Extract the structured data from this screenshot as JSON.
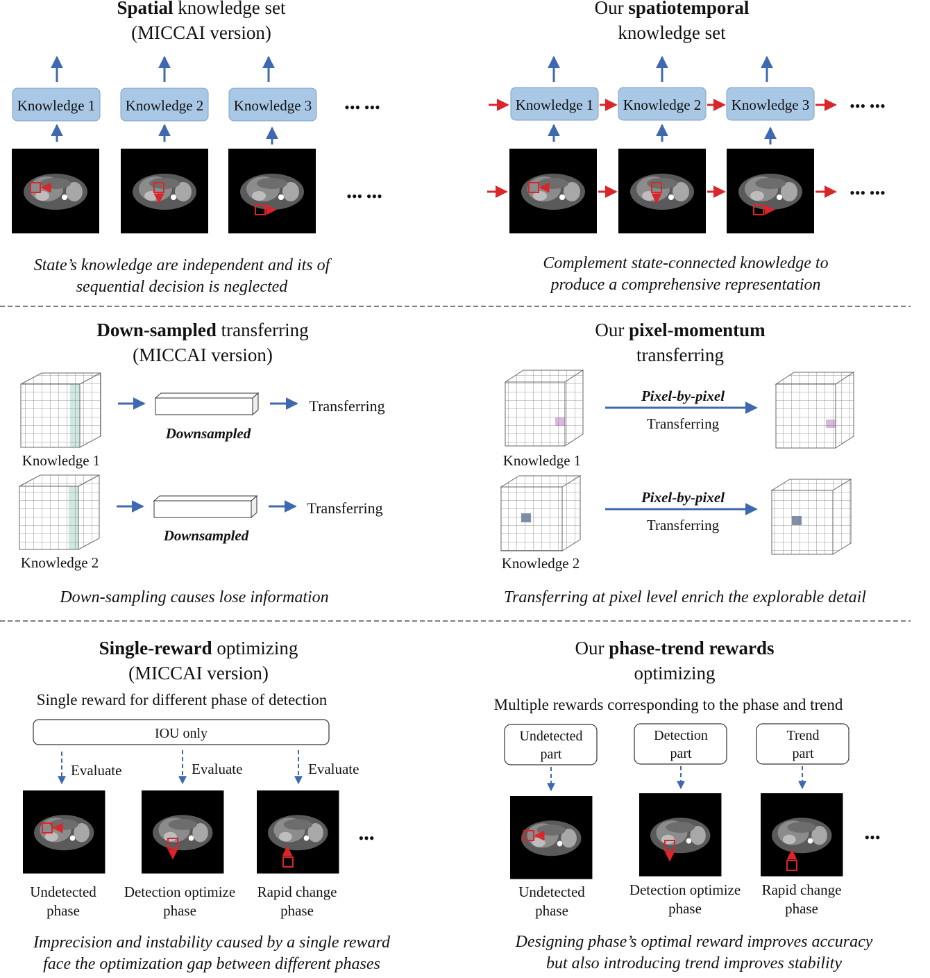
{
  "spatial": {
    "title_bold": "Spatial",
    "title_rest": " knowledge set",
    "subtitle": "(MICCAI version)",
    "boxes": [
      "Knowledge 1",
      "Knowledge 2",
      "Knowledge 3"
    ],
    "dots": "••• •••",
    "caption_line1": "State’s knowledge are independent and its of",
    "caption_line2": "sequential decision is neglected"
  },
  "spatiotemporal": {
    "title_prefix": "Our ",
    "title_bold": "spatiotemporal",
    "subtitle": "knowledge set",
    "boxes": [
      "Knowledge 1",
      "Knowledge 2",
      "Knowledge 3"
    ],
    "dots": "••• •••",
    "caption_line1": "Complement state-connected knowledge to",
    "caption_line2": "produce a comprehensive representation"
  },
  "downsampled": {
    "title_bold": "Down-sampled",
    "title_rest": " transferring",
    "subtitle": "(MICCAI version)",
    "rows": [
      {
        "label": "Knowledge 1",
        "mid": "Downsampled",
        "out": "Transferring"
      },
      {
        "label": "Knowledge 2",
        "mid": "Downsampled",
        "out": "Transferring"
      }
    ],
    "caption": "Down-sampling causes lose information",
    "highlight_color": "#cfe8e2"
  },
  "pixel_momentum": {
    "title_prefix": "Our ",
    "title_bold": "pixel-momentum",
    "subtitle": "transferring",
    "rows": [
      {
        "label": "Knowledge 1",
        "arrow_top": "Pixel-by-pixel",
        "arrow_bottom": "Transferring",
        "cell_color": "#d9b8de"
      },
      {
        "label": "Knowledge 2",
        "arrow_top": "Pixel-by-pixel",
        "arrow_bottom": "Transferring",
        "cell_color": "#7f8fa8"
      }
    ],
    "caption": "Transferring at pixel level enrich the explorable detail"
  },
  "single_reward": {
    "title_bold": "Single-reward",
    "title_rest": " optimizing",
    "subtitle": "(MICCAI version)",
    "description": "Single reward for different phase of detection",
    "box": "IOU only",
    "evaluate": [
      "Evaluate",
      "Evaluate",
      "Evaluate"
    ],
    "phases": [
      {
        "line1": "Undetected",
        "line2": "phase"
      },
      {
        "line1": "Detection optimize",
        "line2": "phase"
      },
      {
        "line1": "Rapid change",
        "line2": "phase"
      }
    ],
    "dots": "•••",
    "caption_line1": "Imprecision and instability caused by a single reward",
    "caption_line2": "face the optimization gap between different phases"
  },
  "phase_trend": {
    "title_prefix": "Our ",
    "title_bold": "phase-trend rewards",
    "subtitle": "optimizing",
    "description": "Multiple rewards corresponding to the phase and trend",
    "boxes": [
      {
        "line1": "Undetected",
        "line2": "part"
      },
      {
        "line1": "Detection",
        "line2": "part"
      },
      {
        "line1": "Trend",
        "line2": "part"
      }
    ],
    "phases": [
      {
        "line1": "Undetected",
        "line2": "phase"
      },
      {
        "line1": "Detection optimize",
        "line2": "phase"
      },
      {
        "line1": "Rapid change",
        "line2": "phase"
      }
    ],
    "dots": "•••",
    "caption_line1": "Designing phase’s optimal reward improves accuracy",
    "caption_line2": "but also introducing trend improves stability"
  },
  "colors": {
    "knowledge_box": "#a9c8e6",
    "knowledge_border": "#7f9fc4",
    "blue_arrow": "#3e68b0",
    "red_arrow": "#d9262b",
    "separator": "#555555"
  }
}
